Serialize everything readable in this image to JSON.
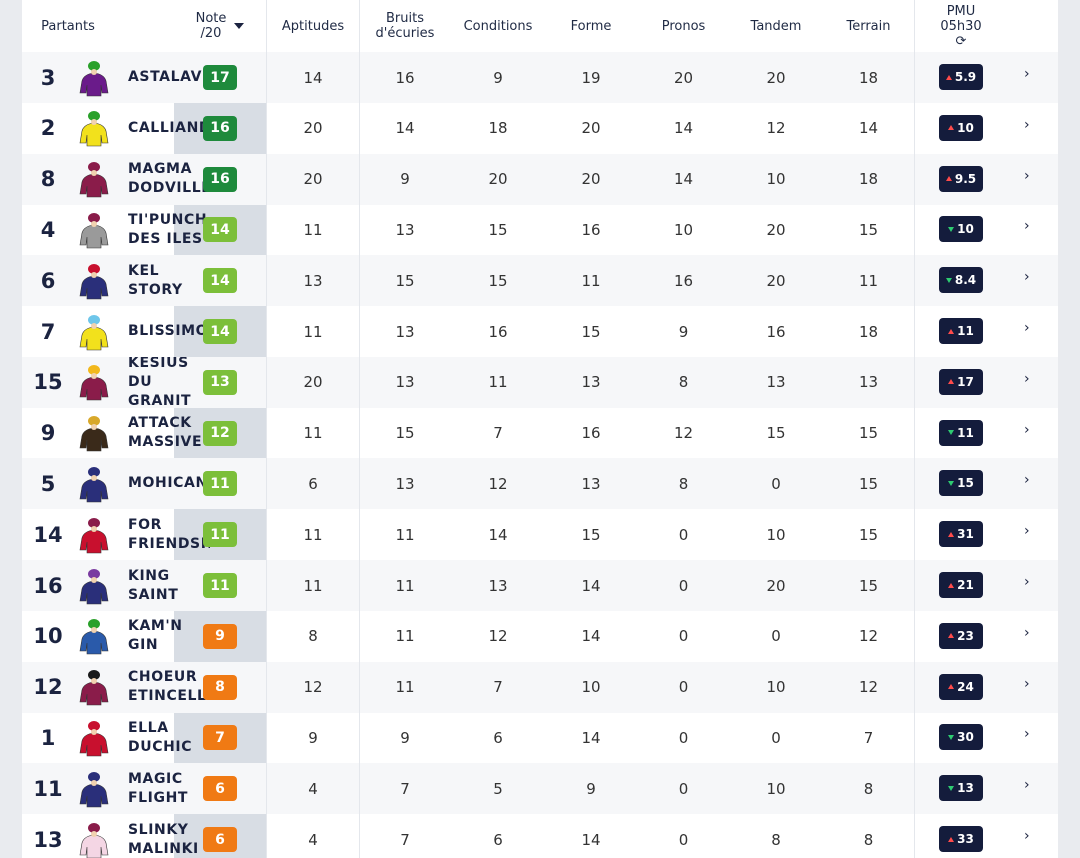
{
  "header": {
    "partants": "Partants",
    "note_line1": "Note",
    "note_line2": "/20",
    "aptitudes": "Aptitudes",
    "bruits_line1": "Bruits",
    "bruits_line2": "d'écuries",
    "conditions": "Conditions",
    "forme": "Forme",
    "pronos": "Pronos",
    "tandem": "Tandem",
    "terrain": "Terrain",
    "pmu_line1": "PMU",
    "pmu_line2": "05h30",
    "refresh_icon": "refresh-icon"
  },
  "colors": {
    "dark_green": "#1e8a3c",
    "light_green": "#7cbf3a",
    "orange": "#f07a14",
    "navy": "#141c3c"
  },
  "rows": [
    {
      "num": "3",
      "name": [
        "ASTALAVISTA"
      ],
      "note": "17",
      "note_color": "#1e8a3c",
      "aptitudes": "14",
      "bruits": "16",
      "conditions": "9",
      "forme": "19",
      "pronos": "20",
      "tandem": "20",
      "terrain": "18",
      "pmu": "5.9",
      "trend": "up",
      "silk": {
        "body": "#6a1b8a",
        "cap": "#2aa02a"
      }
    },
    {
      "num": "2",
      "name": [
        "CALLIANDRA"
      ],
      "note": "16",
      "note_color": "#1e8a3c",
      "aptitudes": "20",
      "bruits": "14",
      "conditions": "18",
      "forme": "20",
      "pronos": "14",
      "tandem": "12",
      "terrain": "14",
      "pmu": "10",
      "trend": "up",
      "silk": {
        "body": "#f2e11c",
        "cap": "#2aa02a"
      }
    },
    {
      "num": "8",
      "name": [
        "MAGMA",
        "DODVILLE"
      ],
      "note": "16",
      "note_color": "#1e8a3c",
      "aptitudes": "20",
      "bruits": "9",
      "conditions": "20",
      "forme": "20",
      "pronos": "14",
      "tandem": "10",
      "terrain": "18",
      "pmu": "9.5",
      "trend": "up",
      "silk": {
        "body": "#8a1c4a",
        "cap": "#8a1c4a"
      }
    },
    {
      "num": "4",
      "name": [
        "TI'PUNCH",
        "DES ILES"
      ],
      "note": "14",
      "note_color": "#7cbf3a",
      "aptitudes": "11",
      "bruits": "13",
      "conditions": "15",
      "forme": "16",
      "pronos": "10",
      "tandem": "20",
      "terrain": "15",
      "pmu": "10",
      "trend": "down",
      "silk": {
        "body": "#9a9a9a",
        "cap": "#8a1c4a"
      }
    },
    {
      "num": "6",
      "name": [
        "KEL",
        "STORY"
      ],
      "note": "14",
      "note_color": "#7cbf3a",
      "aptitudes": "13",
      "bruits": "15",
      "conditions": "15",
      "forme": "11",
      "pronos": "16",
      "tandem": "20",
      "terrain": "11",
      "pmu": "8.4",
      "trend": "down",
      "silk": {
        "body": "#2a2f7a",
        "cap": "#c8102e"
      }
    },
    {
      "num": "7",
      "name": [
        "BLISSIMO"
      ],
      "note": "14",
      "note_color": "#7cbf3a",
      "aptitudes": "11",
      "bruits": "13",
      "conditions": "16",
      "forme": "15",
      "pronos": "9",
      "tandem": "16",
      "terrain": "18",
      "pmu": "11",
      "trend": "up",
      "silk": {
        "body": "#f2e11c",
        "cap": "#6ec6ea"
      }
    },
    {
      "num": "15",
      "name": [
        "KESIUS",
        "DU",
        "GRANIT"
      ],
      "note": "13",
      "note_color": "#7cbf3a",
      "aptitudes": "20",
      "bruits": "13",
      "conditions": "11",
      "forme": "13",
      "pronos": "8",
      "tandem": "13",
      "terrain": "13",
      "pmu": "17",
      "trend": "up",
      "silk": {
        "body": "#8a1c4a",
        "cap": "#f2b81c"
      }
    },
    {
      "num": "9",
      "name": [
        "ATTACK",
        "MASSIVE"
      ],
      "note": "12",
      "note_color": "#7cbf3a",
      "aptitudes": "11",
      "bruits": "15",
      "conditions": "7",
      "forme": "16",
      "pronos": "12",
      "tandem": "15",
      "terrain": "15",
      "pmu": "11",
      "trend": "down",
      "silk": {
        "body": "#3a2a1a",
        "cap": "#d8a82a"
      }
    },
    {
      "num": "5",
      "name": [
        "MOHICAN"
      ],
      "note": "11",
      "note_color": "#7cbf3a",
      "aptitudes": "6",
      "bruits": "13",
      "conditions": "12",
      "forme": "13",
      "pronos": "8",
      "tandem": "0",
      "terrain": "15",
      "pmu": "15",
      "trend": "down",
      "silk": {
        "body": "#2a2f7a",
        "cap": "#2a2f7a"
      }
    },
    {
      "num": "14",
      "name": [
        "FOR",
        "FRIENDSHIP"
      ],
      "note": "11",
      "note_color": "#7cbf3a",
      "aptitudes": "11",
      "bruits": "11",
      "conditions": "14",
      "forme": "15",
      "pronos": "0",
      "tandem": "10",
      "terrain": "15",
      "pmu": "31",
      "trend": "up",
      "silk": {
        "body": "#c8102e",
        "cap": "#8a1c4a"
      }
    },
    {
      "num": "16",
      "name": [
        "KING",
        "SAINT"
      ],
      "note": "11",
      "note_color": "#7cbf3a",
      "aptitudes": "11",
      "bruits": "11",
      "conditions": "13",
      "forme": "14",
      "pronos": "0",
      "tandem": "20",
      "terrain": "15",
      "pmu": "21",
      "trend": "up",
      "silk": {
        "body": "#2a2f7a",
        "cap": "#7a3aa0"
      }
    },
    {
      "num": "10",
      "name": [
        "KAM'N",
        "GIN"
      ],
      "note": "9",
      "note_color": "#f07a14",
      "aptitudes": "8",
      "bruits": "11",
      "conditions": "12",
      "forme": "14",
      "pronos": "0",
      "tandem": "0",
      "terrain": "12",
      "pmu": "23",
      "trend": "up",
      "silk": {
        "body": "#2a5aaa",
        "cap": "#2aa02a"
      }
    },
    {
      "num": "12",
      "name": [
        "CHOEUR",
        "ETINCELLE"
      ],
      "note": "8",
      "note_color": "#f07a14",
      "aptitudes": "12",
      "bruits": "11",
      "conditions": "7",
      "forme": "10",
      "pronos": "0",
      "tandem": "10",
      "terrain": "12",
      "pmu": "24",
      "trend": "up",
      "silk": {
        "body": "#8a1c4a",
        "cap": "#1a1a1a"
      }
    },
    {
      "num": "1",
      "name": [
        "ELLA",
        "DUCHIC"
      ],
      "note": "7",
      "note_color": "#f07a14",
      "aptitudes": "9",
      "bruits": "9",
      "conditions": "6",
      "forme": "14",
      "pronos": "0",
      "tandem": "0",
      "terrain": "7",
      "pmu": "30",
      "trend": "down",
      "silk": {
        "body": "#c8102e",
        "cap": "#c8102e"
      }
    },
    {
      "num": "11",
      "name": [
        "MAGIC",
        "FLIGHT"
      ],
      "note": "6",
      "note_color": "#f07a14",
      "aptitudes": "4",
      "bruits": "7",
      "conditions": "5",
      "forme": "9",
      "pronos": "0",
      "tandem": "10",
      "terrain": "8",
      "pmu": "13",
      "trend": "down",
      "silk": {
        "body": "#2a2f7a",
        "cap": "#2a2f7a"
      }
    },
    {
      "num": "13",
      "name": [
        "SLINKY",
        "MALINKI"
      ],
      "note": "6",
      "note_color": "#f07a14",
      "aptitudes": "4",
      "bruits": "7",
      "conditions": "6",
      "forme": "14",
      "pronos": "0",
      "tandem": "8",
      "terrain": "8",
      "pmu": "33",
      "trend": "up",
      "silk": {
        "body": "#f4d6e4",
        "cap": "#8a1c4a"
      }
    }
  ]
}
